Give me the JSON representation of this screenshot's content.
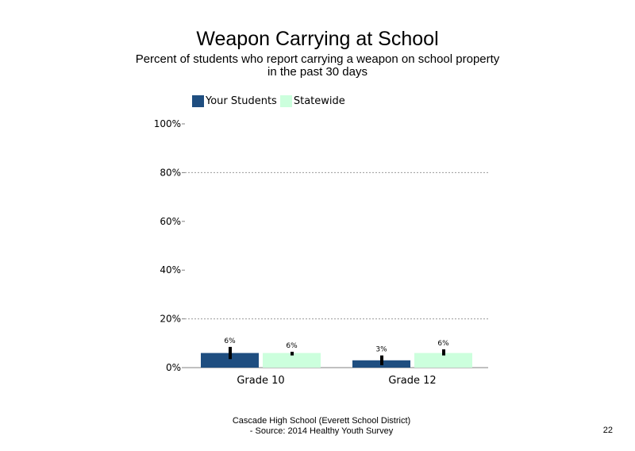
{
  "chart_data": {
    "type": "bar",
    "title": "Weapon Carrying at School",
    "subtitle": "Percent of students who report carrying a weapon on school property in the past 30 days",
    "categories": [
      "Grade 10",
      "Grade 12"
    ],
    "series": [
      {
        "name": "Your Students",
        "color": "#1F4E80",
        "values": [
          6,
          3
        ],
        "labels": [
          "6%",
          "3%"
        ],
        "error": [
          [
            3.5,
            8.5
          ],
          [
            1.0,
            5.0
          ]
        ]
      },
      {
        "name": "Statewide",
        "color": "#CCFFDD",
        "values": [
          6,
          6
        ],
        "labels": [
          "6%",
          "6%"
        ],
        "error": [
          [
            5.0,
            6.5
          ],
          [
            5.0,
            7.5
          ]
        ]
      }
    ],
    "ylim": [
      0,
      100
    ],
    "yticks": [
      0,
      20,
      40,
      60,
      80,
      100
    ],
    "ytick_labels": [
      "0%",
      "20%",
      "40%",
      "60%",
      "80%",
      "100%"
    ],
    "gridlines": [
      20,
      80
    ],
    "legend_position": "top-left",
    "xlabel": "",
    "ylabel": ""
  },
  "footer": {
    "line1": "Cascade High School (Everett School District)",
    "line2": "- Source: 2014 Healthy Youth Survey"
  },
  "page_number": "22"
}
